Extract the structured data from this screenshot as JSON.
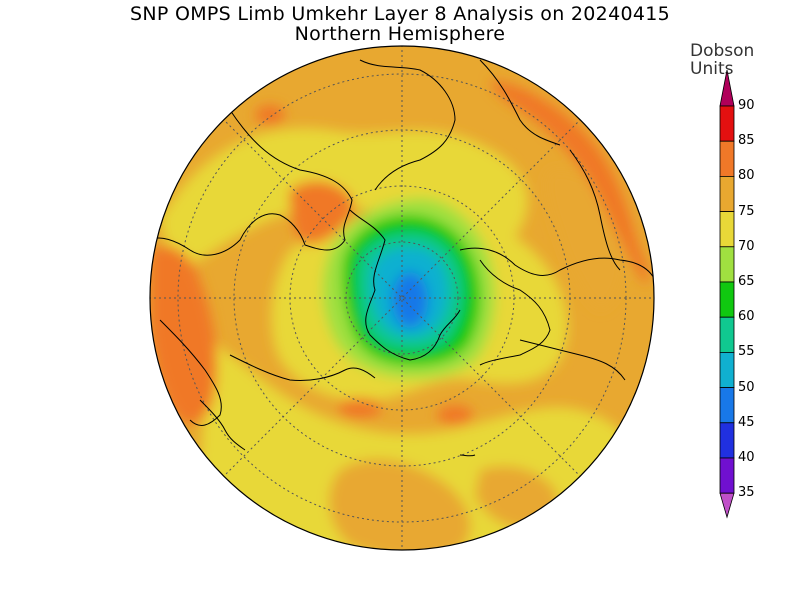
{
  "title": "SNP OMPS Limb Umkehr Layer 8 Analysis on 20240415",
  "subtitle": "Northern Hemisphere",
  "units_line1": "Dobson",
  "units_line2": "Units",
  "colorbar": {
    "levels": [
      "90",
      "85",
      "80",
      "75",
      "70",
      "65",
      "60",
      "55",
      "50",
      "45",
      "40",
      "35"
    ],
    "colors": [
      "#b0005a",
      "#e31010",
      "#f07828",
      "#e8a830",
      "#e8d838",
      "#a0e040",
      "#10c810",
      "#10c890",
      "#10b0d0",
      "#1878e8",
      "#2030e0",
      "#7010d0",
      "#c050c8"
    ]
  }
}
